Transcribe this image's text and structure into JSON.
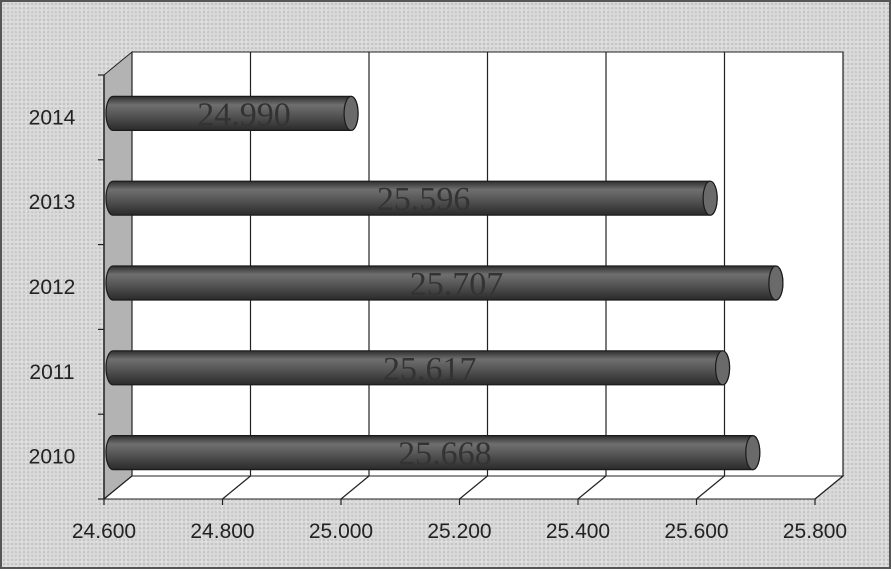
{
  "chart_data": {
    "type": "bar",
    "orientation": "horizontal",
    "style": "3d-cylinder",
    "categories": [
      "2010",
      "2011",
      "2012",
      "2013",
      "2014"
    ],
    "values": [
      25668,
      25617,
      25707,
      25596,
      24990
    ],
    "data_labels": [
      "25.668",
      "25.617",
      "25.707",
      "25.596",
      "24.990"
    ],
    "x_ticks": [
      "24.600",
      "24.800",
      "25.000",
      "25.200",
      "25.400",
      "25.600",
      "25.800"
    ],
    "xlim": [
      24600,
      25800
    ],
    "grid": true,
    "legend": "none",
    "colors": {
      "bar": "#555555",
      "bar_cap": "#6a6a6a",
      "plot_wall": "#ffffff",
      "side_wall": "#b3b3b3",
      "grid": "#222222",
      "background": "#d9d9d9"
    }
  }
}
